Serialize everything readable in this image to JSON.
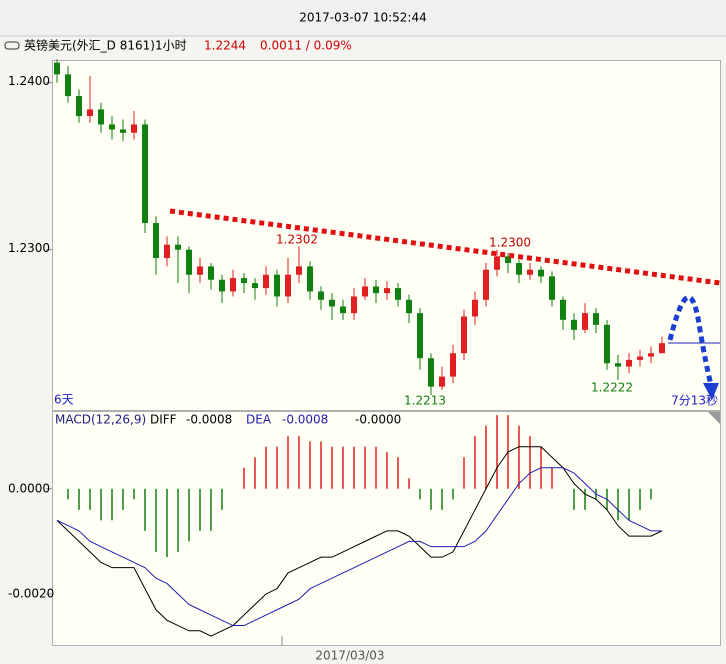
{
  "header": {
    "datetime": "2017-03-07 10:52:44",
    "symbol": "英镑美元(外汇_D 8161)1小时",
    "price": "1.2244",
    "change": "0.0011 / 0.09%"
  },
  "chart_data": [
    {
      "type": "candlestick",
      "categories": [
        null,
        null,
        null,
        null,
        null,
        null,
        null,
        null,
        null,
        null,
        null,
        null,
        null,
        null,
        null,
        null,
        null,
        null,
        null,
        null,
        null,
        null,
        null,
        null,
        null,
        null,
        null,
        "2017/03/03",
        null,
        null,
        null,
        null,
        null,
        null,
        null,
        null,
        null,
        null,
        null,
        null,
        null,
        null,
        null,
        null,
        null,
        null,
        null,
        null,
        null,
        null,
        null,
        null,
        null,
        null,
        null,
        null
      ],
      "open": [
        1.2412,
        1.2405,
        1.2392,
        1.238,
        1.2384,
        1.2375,
        1.2372,
        1.237,
        1.2375,
        1.2316,
        1.2295,
        1.2303,
        1.23,
        1.2285,
        1.229,
        1.2282,
        1.2275,
        1.2283,
        1.228,
        1.2277,
        1.2285,
        1.2272,
        1.2285,
        1.229,
        1.2275,
        1.227,
        1.2266,
        1.2262,
        1.2272,
        1.2278,
        1.2274,
        1.2277,
        1.227,
        1.2262,
        1.2235,
        1.2218,
        1.2224,
        1.2238,
        1.226,
        1.227,
        1.2288,
        1.2296,
        1.2292,
        1.2285,
        1.2288,
        1.2284,
        1.227,
        1.2258,
        1.2252,
        1.2262,
        1.2255,
        1.2232,
        1.223,
        1.2234,
        1.2236,
        1.2238
      ],
      "high": [
        1.2414,
        1.241,
        1.2396,
        1.2404,
        1.2388,
        1.238,
        1.2378,
        1.2383,
        1.2378,
        1.232,
        1.2308,
        1.2308,
        1.2302,
        1.2295,
        1.2292,
        1.2285,
        1.2288,
        1.2286,
        1.2283,
        1.229,
        1.2288,
        1.2295,
        1.2302,
        1.2293,
        1.2278,
        1.2274,
        1.227,
        1.2277,
        1.2283,
        1.2282,
        1.2281,
        1.228,
        1.2273,
        1.2265,
        1.2238,
        1.223,
        1.2243,
        1.2264,
        1.2275,
        1.2292,
        1.23,
        1.2298,
        1.2294,
        1.2292,
        1.229,
        1.2287,
        1.2272,
        1.2262,
        1.2268,
        1.2265,
        1.2258,
        1.2237,
        1.2238,
        1.224,
        1.2242,
        1.2248
      ],
      "low": [
        1.24,
        1.2388,
        1.2376,
        1.2376,
        1.237,
        1.2366,
        1.2365,
        1.2366,
        1.231,
        1.2285,
        1.229,
        1.228,
        1.2274,
        1.228,
        1.2276,
        1.2268,
        1.2272,
        1.2274,
        1.227,
        1.2273,
        1.2266,
        1.2268,
        1.228,
        1.227,
        1.2264,
        1.2258,
        1.2258,
        1.2258,
        1.227,
        1.2268,
        1.227,
        1.2266,
        1.2256,
        1.2228,
        1.2213,
        1.2216,
        1.222,
        1.2234,
        1.2255,
        1.2266,
        1.2284,
        1.2286,
        1.228,
        1.2282,
        1.228,
        1.2266,
        1.2252,
        1.2246,
        1.225,
        1.225,
        1.2228,
        1.2222,
        1.2226,
        1.223,
        1.2232,
        1.2238
      ],
      "close": [
        1.2405,
        1.2392,
        1.238,
        1.2384,
        1.2375,
        1.2372,
        1.237,
        1.2375,
        1.2316,
        1.2295,
        1.2303,
        1.23,
        1.2285,
        1.229,
        1.2282,
        1.2275,
        1.2283,
        1.228,
        1.2277,
        1.2285,
        1.2272,
        1.2285,
        1.229,
        1.2275,
        1.227,
        1.2266,
        1.2262,
        1.2272,
        1.2278,
        1.2274,
        1.2277,
        1.227,
        1.2262,
        1.2235,
        1.2218,
        1.2224,
        1.2238,
        1.226,
        1.227,
        1.2288,
        1.2296,
        1.2292,
        1.2285,
        1.2288,
        1.2284,
        1.227,
        1.2258,
        1.2252,
        1.2262,
        1.2255,
        1.2232,
        1.223,
        1.2234,
        1.2236,
        1.2238,
        1.2244
      ],
      "up_color": "#e02020",
      "down_color": "#108010",
      "ylim": [
        1.2204,
        1.2413
      ],
      "yticks": [
        {
          "value": 1.24,
          "label": "1.2400"
        },
        {
          "value": 1.23,
          "label": "1.2300"
        }
      ],
      "annotations": [
        "1.2302",
        "1.2300",
        "1.2213",
        "1.2222",
        "6天",
        "7分13秒"
      ]
    },
    {
      "type": "macd",
      "title": "MACD(12,26,9)",
      "ylim": [
        -0.00297,
        0.00146
      ],
      "yticks": [
        {
          "value": 0,
          "label": "0.0000"
        },
        {
          "value": -0.002,
          "label": "-0.0020"
        }
      ],
      "histogram": {
        "current": "-0.0000",
        "up_color": "#e02020",
        "down_color": "#108010",
        "values": [
          0,
          -0.0002,
          -0.0004,
          -0.0004,
          -0.0006,
          -0.0006,
          -0.0004,
          -0.0002,
          -0.0008,
          -0.0012,
          -0.0013,
          -0.0012,
          -0.001,
          -0.0008,
          -0.0008,
          -0.0004,
          0,
          0.0004,
          0.0006,
          0.0008,
          0.0008,
          0.001,
          0.001,
          0.0009,
          0.0009,
          0.0008,
          0.0008,
          0.0008,
          0.0008,
          0.0008,
          0.0007,
          0.0006,
          0.0002,
          -0.0002,
          -0.0004,
          -0.0004,
          -0.0002,
          0.0006,
          0.001,
          0.0012,
          0.0014,
          0.0014,
          0.0012,
          0.001,
          0.0008,
          0.0004,
          0,
          -0.0004,
          -0.0004,
          -0.0002,
          -0.0004,
          -0.0006,
          -0.0006,
          -0.0004,
          -0.0002,
          0
        ]
      },
      "series": [
        {
          "name": "DIFF",
          "color": "#000000",
          "current": "-0.0008",
          "values": [
            -0.0006,
            -0.0008,
            -0.001,
            -0.0012,
            -0.0014,
            -0.0015,
            -0.0015,
            -0.0015,
            -0.0019,
            -0.0023,
            -0.0025,
            -0.0026,
            -0.0027,
            -0.0027,
            -0.0028,
            -0.0027,
            -0.0026,
            -0.0024,
            -0.0022,
            -0.002,
            -0.0019,
            -0.0016,
            -0.0015,
            -0.0014,
            -0.0013,
            -0.0013,
            -0.0012,
            -0.0011,
            -0.001,
            -0.0009,
            -0.0008,
            -0.0008,
            -0.0009,
            -0.0011,
            -0.0013,
            -0.0013,
            -0.0012,
            -0.0008,
            -0.0004,
            0,
            0.0004,
            0.0007,
            0.0008,
            0.0008,
            0.0008,
            0.0006,
            0.0004,
            0.0001,
            -0.0001,
            -0.0002,
            -0.0004,
            -0.0007,
            -0.0009,
            -0.0009,
            -0.0009,
            -0.0008
          ]
        },
        {
          "name": "DEA",
          "color": "#2020b0",
          "current": "-0.0008",
          "values": [
            -0.0006,
            -0.0007,
            -0.0008,
            -0.001,
            -0.0011,
            -0.0012,
            -0.0013,
            -0.0014,
            -0.0015,
            -0.0017,
            -0.0018,
            -0.002,
            -0.0022,
            -0.0023,
            -0.0024,
            -0.0025,
            -0.0026,
            -0.0026,
            -0.0025,
            -0.0024,
            -0.0023,
            -0.0022,
            -0.0021,
            -0.0019,
            -0.0018,
            -0.0017,
            -0.0016,
            -0.0015,
            -0.0014,
            -0.0013,
            -0.0012,
            -0.0011,
            -0.001,
            -0.001,
            -0.0011,
            -0.0011,
            -0.0011,
            -0.0011,
            -0.001,
            -0.0008,
            -0.0005,
            -0.0002,
            0.0001,
            0.0003,
            0.0004,
            0.0004,
            0.0004,
            0.0003,
            0.0001,
            -0.0001,
            -0.0002,
            -0.0004,
            -0.0006,
            -0.0007,
            -0.0008,
            -0.0008
          ]
        }
      ]
    }
  ]
}
